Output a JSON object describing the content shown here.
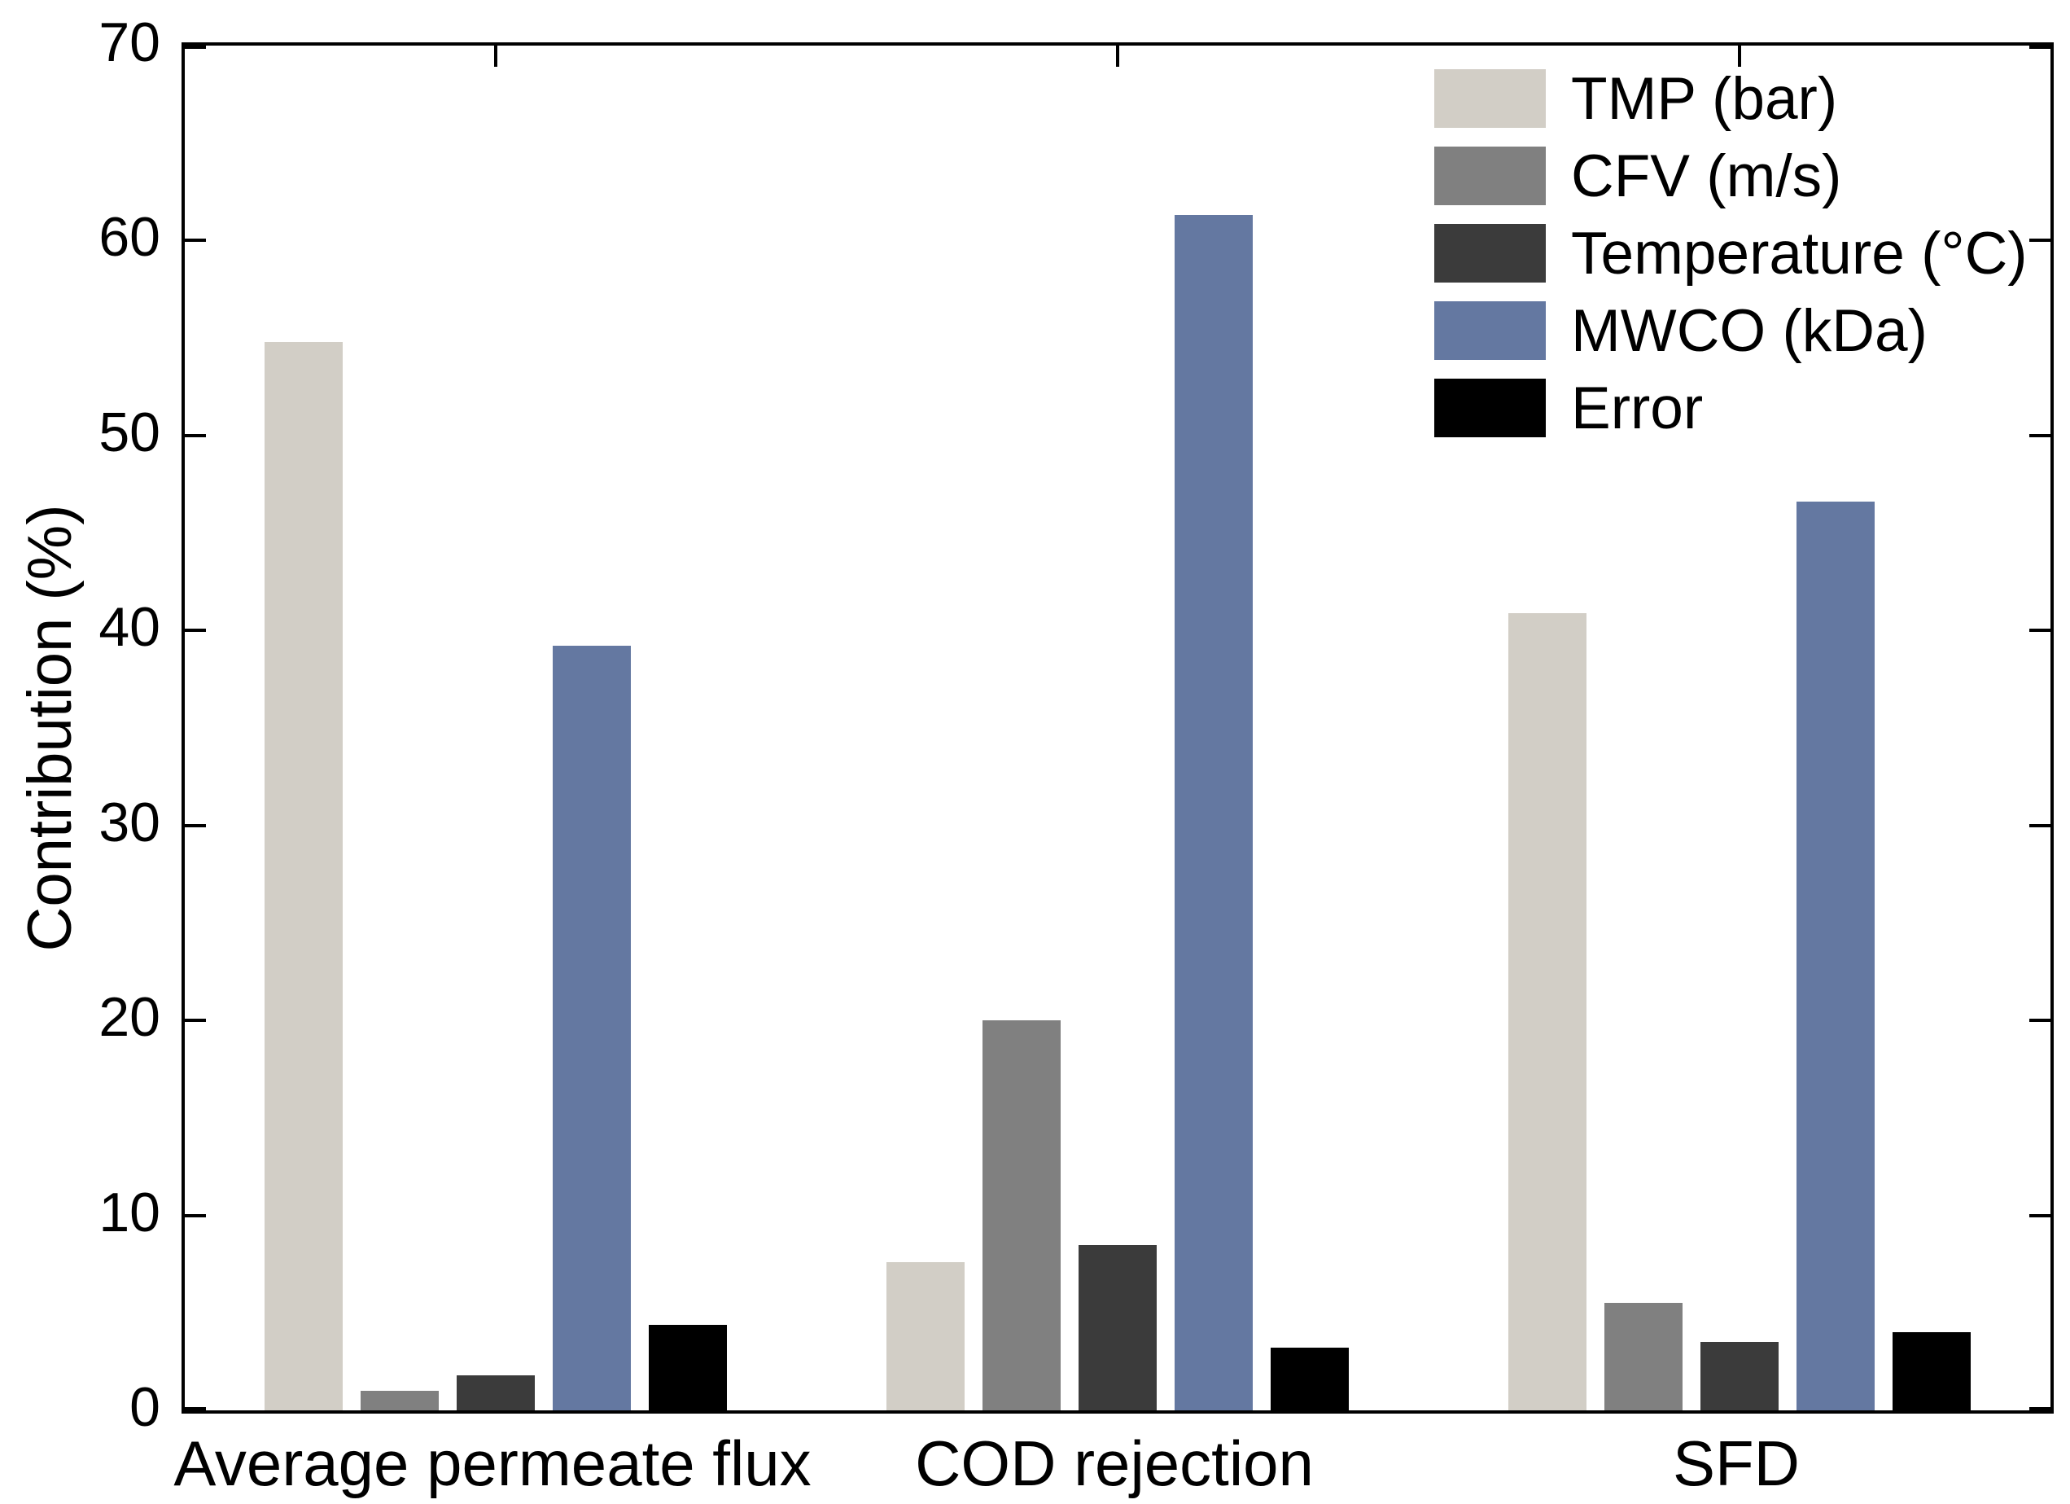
{
  "chart_data": {
    "type": "bar",
    "title": "",
    "ylabel": "Contribution (%)",
    "xlabel": "",
    "ylim": [
      0,
      70
    ],
    "yticks": [
      0,
      10,
      20,
      30,
      40,
      50,
      60,
      70
    ],
    "grid": false,
    "legend_position": "top-right-inside",
    "legend_border": false,
    "categories": [
      "Average permeate flux",
      "COD rejection",
      "SFD"
    ],
    "series": [
      {
        "name": "TMP (bar)",
        "color": "#D2CEC6",
        "values": [
          54.8,
          7.6,
          40.9
        ]
      },
      {
        "name": "CFV (m/s)",
        "color": "#808080",
        "values": [
          1.0,
          20.0,
          5.5
        ]
      },
      {
        "name": "Temperature (°C)",
        "color": "#3B3B3B",
        "values": [
          1.8,
          8.5,
          3.5
        ]
      },
      {
        "name": "MWCO (kDa)",
        "color": "#6478A1",
        "values": [
          39.2,
          61.3,
          46.6
        ]
      },
      {
        "name": "Error",
        "color": "#000000",
        "values": [
          4.4,
          3.2,
          4.0
        ]
      }
    ],
    "axis_color": "#000000",
    "background": "#FFFFFF"
  }
}
